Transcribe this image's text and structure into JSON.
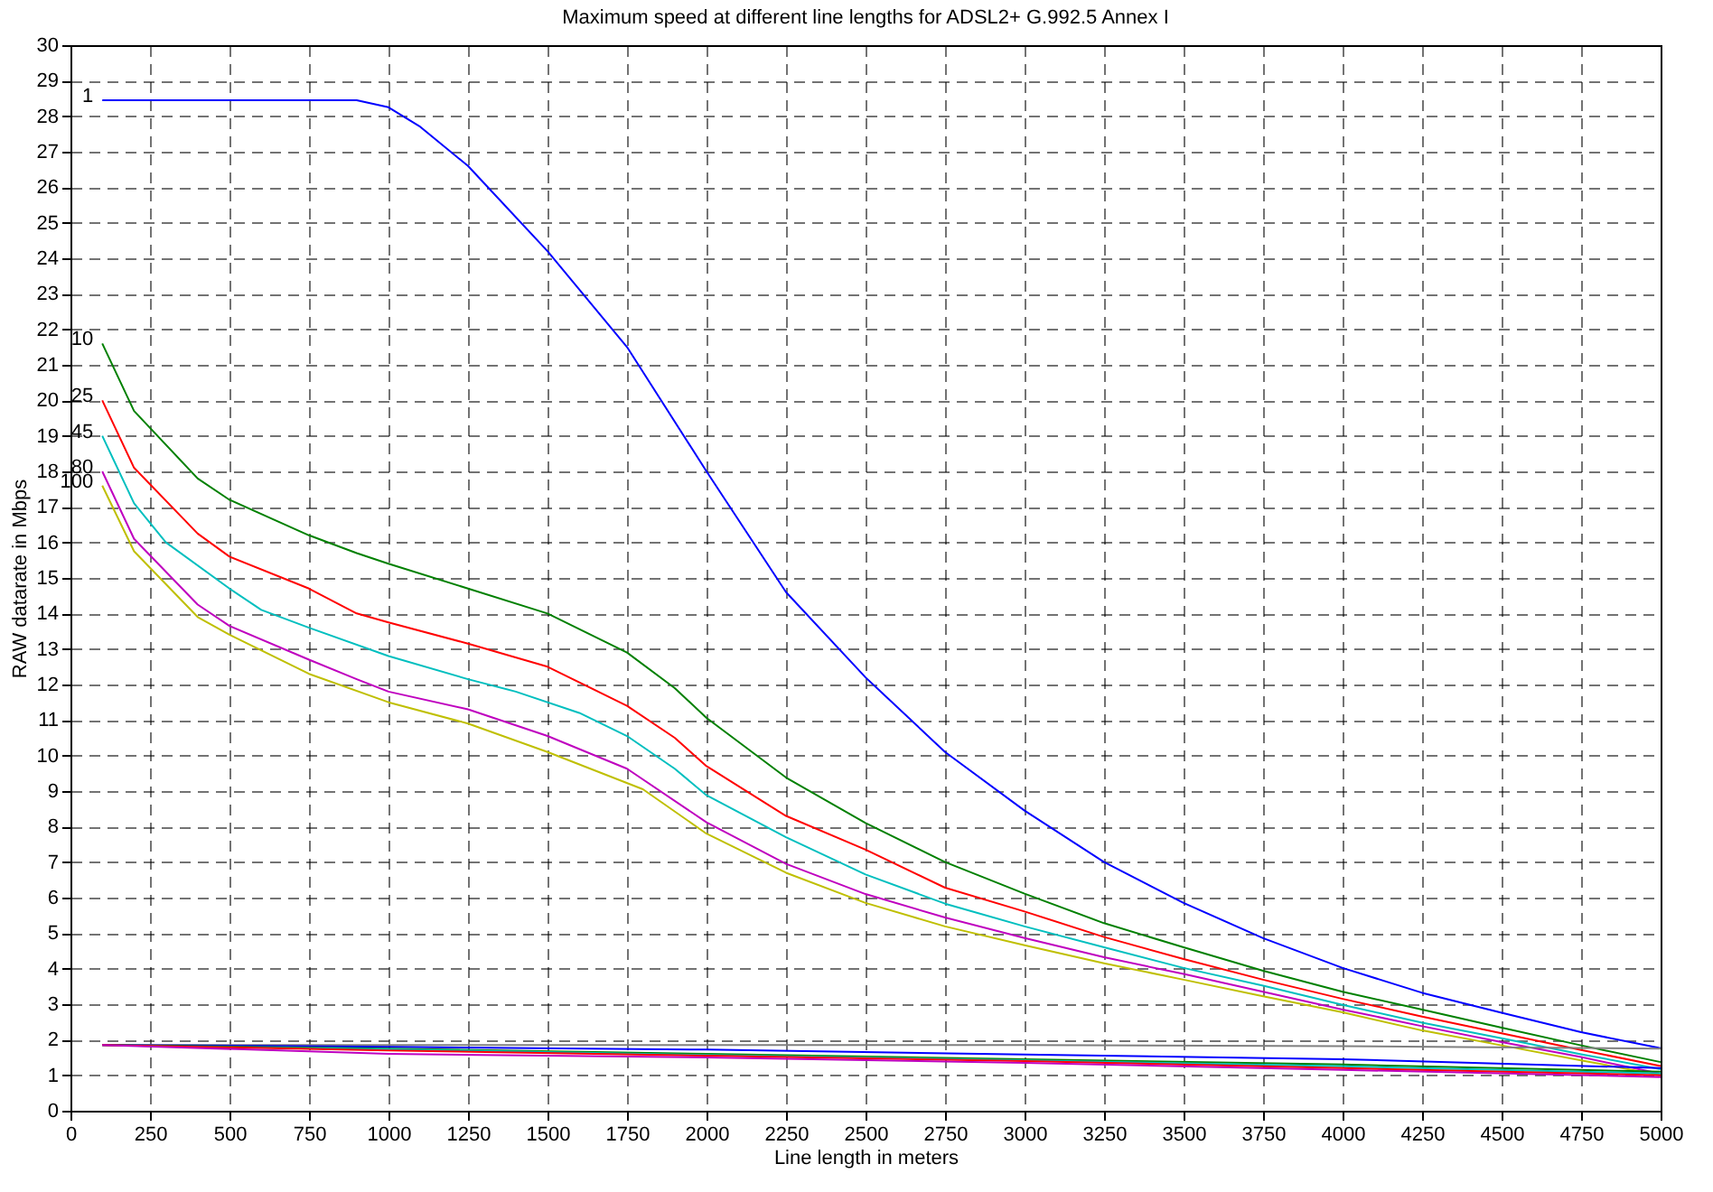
{
  "chart_data": {
    "type": "line",
    "title": "Maximum speed at different line lengths for ADSL2+ G.992.5 Annex I",
    "xlabel": "Line length in meters",
    "ylabel": "RAW datarate in Mbps",
    "xlim": [
      0,
      5000
    ],
    "xticks": [
      0,
      250,
      500,
      750,
      1000,
      1250,
      1500,
      1750,
      2000,
      2250,
      2500,
      2750,
      3000,
      3250,
      3500,
      3750,
      4000,
      4250,
      4500,
      4750,
      5000
    ],
    "ylim": [
      0,
      30
    ],
    "yticks": [
      0,
      1,
      2,
      3,
      4,
      5,
      6,
      7,
      8,
      9,
      10,
      11,
      12,
      13,
      14,
      15,
      16,
      17,
      18,
      19,
      20,
      21,
      22,
      23,
      24,
      25,
      26,
      27,
      28,
      29,
      30
    ],
    "grid": true,
    "line_style": "solid",
    "legend": false,
    "series": [
      {
        "name": "1",
        "color": "#0000ff",
        "x": [
          100,
          900,
          1000,
          1100,
          1250,
          1500,
          1750,
          2000,
          2250,
          2500,
          2750,
          3000,
          3250,
          3500,
          3750,
          4000,
          4250,
          4500,
          4750,
          5000
        ],
        "values": [
          28.45,
          28.45,
          28.25,
          27.7,
          26.6,
          24.2,
          21.5,
          18.0,
          14.6,
          12.2,
          10.1,
          8.45,
          7.0,
          5.85,
          4.86,
          4.02,
          3.32,
          2.76,
          2.21,
          1.76
        ]
      },
      {
        "name": "10",
        "color": "#008000",
        "x": [
          100,
          200,
          400,
          500,
          750,
          900,
          1000,
          1250,
          1500,
          1750,
          1900,
          2000,
          2250,
          2500,
          2750,
          3000,
          3250,
          3500,
          3750,
          4000,
          4250,
          4500,
          4750,
          5000
        ],
        "values": [
          21.6,
          19.7,
          17.8,
          17.2,
          16.2,
          15.7,
          15.4,
          14.7,
          14.0,
          12.9,
          11.9,
          11.06,
          9.38,
          8.1,
          7.0,
          6.11,
          5.28,
          4.6,
          3.94,
          3.35,
          2.85,
          2.34,
          1.84,
          1.37
        ]
      },
      {
        "name": "25",
        "color": "#ff0000",
        "x": [
          100,
          200,
          400,
          500,
          750,
          900,
          1000,
          1250,
          1500,
          1750,
          1900,
          2000,
          2250,
          2500,
          2750,
          3000,
          3250,
          3500,
          3750,
          4000,
          4250,
          4500,
          4750,
          5000
        ],
        "values": [
          20.0,
          18.1,
          16.25,
          15.6,
          14.7,
          14.0,
          13.75,
          13.15,
          12.5,
          11.4,
          10.5,
          9.7,
          8.3,
          7.35,
          6.28,
          5.61,
          4.89,
          4.27,
          3.69,
          3.15,
          2.65,
          2.18,
          1.71,
          1.26
        ]
      },
      {
        "name": "45",
        "color": "#00bfbf",
        "x": [
          100,
          200,
          300,
          500,
          600,
          750,
          1000,
          1250,
          1400,
          1600,
          1750,
          1900,
          2000,
          2250,
          2500,
          2750,
          3000,
          3250,
          3500,
          3750,
          4000,
          4250,
          4500,
          4750,
          5000
        ],
        "values": [
          19.0,
          17.1,
          16.0,
          14.7,
          14.1,
          13.6,
          12.8,
          12.15,
          11.8,
          11.2,
          10.55,
          9.63,
          8.88,
          7.7,
          6.65,
          5.83,
          5.19,
          4.6,
          4.02,
          3.52,
          2.98,
          2.48,
          2.04,
          1.59,
          1.17
        ]
      },
      {
        "name": "80",
        "color": "#bf00bf",
        "x": [
          100,
          200,
          400,
          500,
          750,
          900,
          1000,
          1250,
          1500,
          1750,
          2000,
          2250,
          2500,
          2750,
          3000,
          3250,
          3500,
          3750,
          4000,
          4250,
          4500,
          4750,
          5000
        ],
        "values": [
          18.0,
          16.1,
          14.25,
          13.65,
          12.7,
          12.15,
          11.8,
          11.3,
          10.55,
          9.63,
          8.12,
          6.95,
          6.1,
          5.44,
          4.86,
          4.32,
          3.85,
          3.35,
          2.85,
          2.38,
          1.93,
          1.51,
          1.04
        ]
      },
      {
        "name": "100",
        "color": "#bfbf00",
        "x": [
          100,
          200,
          400,
          500,
          750,
          1000,
          1250,
          1500,
          1800,
          2000,
          2250,
          2500,
          2750,
          3000,
          3250,
          3500,
          3750,
          4000,
          4250,
          4500,
          4750,
          5000
        ],
        "values": [
          17.6,
          15.75,
          13.9,
          13.4,
          12.3,
          11.5,
          10.9,
          10.1,
          9.05,
          7.8,
          6.7,
          5.85,
          5.19,
          4.66,
          4.15,
          3.69,
          3.22,
          2.77,
          2.26,
          1.84,
          1.42,
          1.0
        ]
      },
      {
        "color": "#808080",
        "x": [
          100,
          1000,
          2000,
          3000,
          4000,
          5000
        ],
        "values": [
          1.85,
          1.85,
          1.85,
          1.85,
          1.82,
          1.75
        ]
      },
      {
        "color": "#0000ff",
        "x": [
          100,
          1000,
          2000,
          3000,
          4000,
          5000
        ],
        "values": [
          1.85,
          1.8,
          1.72,
          1.58,
          1.45,
          1.2
        ]
      },
      {
        "color": "#008000",
        "x": [
          100,
          1000,
          2000,
          3000,
          4000,
          5000
        ],
        "values": [
          1.85,
          1.75,
          1.6,
          1.45,
          1.3,
          1.1
        ]
      },
      {
        "color": "#00bfbf",
        "x": [
          250,
          1000,
          2000,
          3000,
          4000,
          5000
        ],
        "values": [
          1.81,
          1.73,
          1.57,
          1.42,
          1.25,
          1.05
        ]
      },
      {
        "color": "#ff0000",
        "x": [
          100,
          1000,
          2000,
          3000,
          4000,
          5000
        ],
        "values": [
          1.85,
          1.7,
          1.55,
          1.4,
          1.2,
          1.0
        ]
      },
      {
        "color": "#bf00bf",
        "x": [
          100,
          1000,
          2000,
          3000,
          4000,
          5000
        ],
        "values": [
          1.85,
          1.6,
          1.5,
          1.35,
          1.15,
          0.95
        ]
      }
    ]
  }
}
